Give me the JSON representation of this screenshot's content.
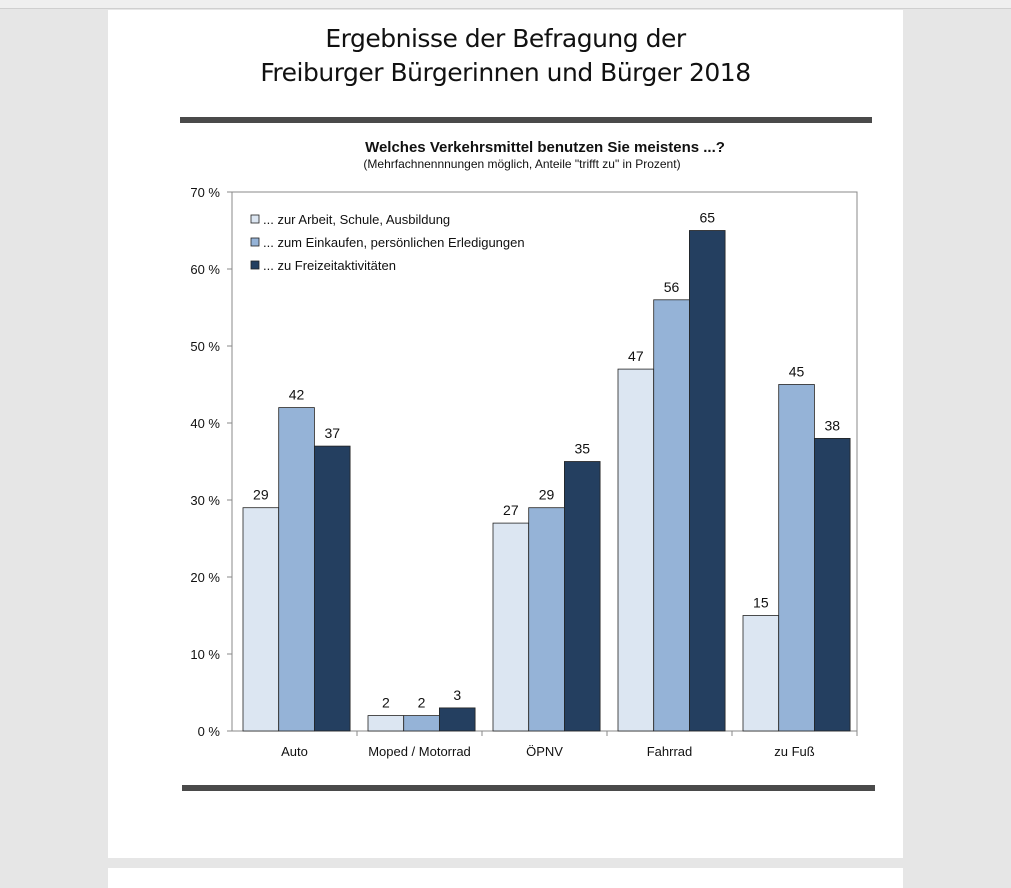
{
  "page": {
    "title_line1": "Ergebnisse der Befragung der",
    "title_line2": "Freiburger Bürgerinnen und Bürger 2018"
  },
  "chart_data": {
    "type": "bar",
    "title": "Welches Verkehrsmittel benutzen Sie meistens ...?",
    "subtitle": "(Mehrfachnennnungen möglich, Anteile \"trifft zu\" in Prozent)",
    "xlabel": "",
    "ylabel": "",
    "ylim": [
      0,
      70
    ],
    "yticks": [
      "0 %",
      "10 %",
      "20 %",
      "30 %",
      "40 %",
      "50 %",
      "60 %",
      "70 %"
    ],
    "grid": false,
    "legend_position": "top-left",
    "categories": [
      "Auto",
      "Moped / Motorrad",
      "ÖPNV",
      "Fahrrad",
      "zu Fuß"
    ],
    "series": [
      {
        "name": "... zur Arbeit, Schule, Ausbildung",
        "color": "#dce6f2",
        "values": [
          29,
          2,
          27,
          47,
          15
        ]
      },
      {
        "name": "... zum Einkaufen, persönlichen Erledigungen",
        "color": "#95b3d7",
        "values": [
          42,
          2,
          29,
          56,
          45
        ]
      },
      {
        "name": "... zu Freizeitaktivitäten",
        "color": "#243f60",
        "values": [
          37,
          3,
          35,
          65,
          38
        ]
      }
    ]
  }
}
